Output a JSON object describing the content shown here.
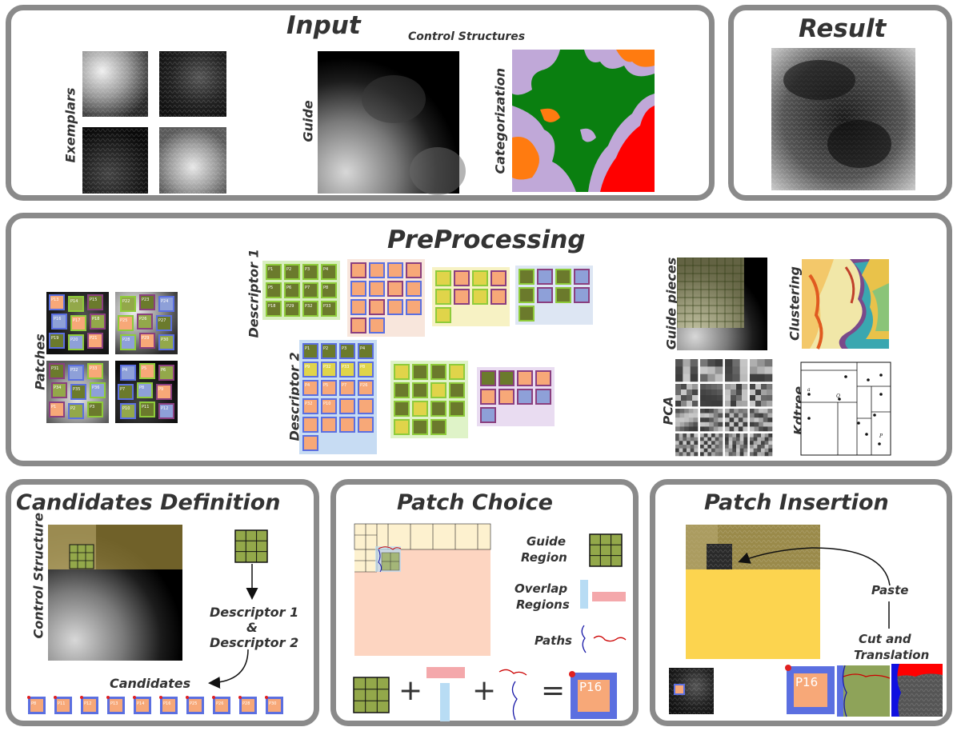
{
  "panels": {
    "input": {
      "title": "Input",
      "control_structures": "Control Structures",
      "exemplars": "Exemplars",
      "guide": "Guide",
      "categorization": "Categorization"
    },
    "result": {
      "title": "Result"
    },
    "preprocessing": {
      "title": "PreProcessing",
      "patches": "Patches",
      "descriptor1": "Descriptor 1",
      "descriptor2": "Descriptor 2",
      "guide_pieces": "Guide pieces",
      "clustering": "Clustering",
      "pca": "PCA",
      "kdtree": "Kdtree",
      "patch_ids_a": [
        "P13",
        "P14",
        "P15",
        "P16",
        "P17",
        "P18",
        "P19",
        "P20",
        "P21",
        "P22",
        "P23",
        "P24",
        "P25",
        "P26",
        "P27",
        "P28",
        "P29",
        "P30",
        "P31",
        "P32",
        "P33",
        "P34",
        "P35",
        "P36"
      ],
      "patch_ids_b": [
        "P1",
        "P2",
        "P3",
        "P4",
        "P5",
        "P6",
        "P7",
        "P8",
        "P9",
        "P10",
        "P11",
        "P12",
        "P37",
        "P38",
        "P39",
        "P40",
        "P41",
        "P42",
        "P43",
        "P44",
        "P45",
        "P46",
        "P47",
        "P48"
      ],
      "desc1_ids": [
        "P1",
        "P2",
        "P3",
        "P4",
        "P5",
        "P6",
        "P7",
        "P8",
        "P18",
        "P29",
        "P32",
        "P33"
      ],
      "desc2_ids": [
        "P1",
        "P2",
        "P3",
        "P4",
        "P9",
        "P32",
        "P33",
        "P8",
        "P4",
        "P5",
        "P7",
        "P26",
        "P32",
        "P10"
      ],
      "kdtree_points": [
        "a",
        "Q",
        "P"
      ]
    },
    "candidates": {
      "title": "Candidates Definition",
      "control_structure": "Control Structure",
      "descriptor_line1": "Descriptor 1",
      "descriptor_amp": "&",
      "descriptor_line2": "Descriptor 2",
      "candidates": "Candidates",
      "candidate_ids": [
        "P8",
        "P11",
        "P12",
        "P13",
        "P14",
        "P16",
        "P25",
        "P26",
        "P28",
        "P30"
      ]
    },
    "patch_choice": {
      "title": "Patch Choice",
      "guide_region_1": "Guide",
      "guide_region_2": "Region",
      "overlap_1": "Overlap",
      "overlap_2": "Regions",
      "paths": "Paths",
      "plus": "+",
      "equals": "=",
      "result_patch": "P16"
    },
    "patch_insertion": {
      "title": "Patch Insertion",
      "paste": "Paste",
      "cut_1": "Cut and",
      "cut_2": "Translation",
      "patch": "P16"
    }
  },
  "colors": {
    "border": "#8a8a8a",
    "green_cell": "#93a84a",
    "olive_cell": "#6b7a2c",
    "orange_cell": "#f7a878",
    "blue_frame": "#5b6fe0",
    "purple_frame": "#8a3f7f",
    "lime_frame": "#8ecb3a",
    "cat_green": "#0a7f10",
    "cat_orange": "#ff7b10",
    "cat_lavender": "#c0a8d8",
    "cat_red": "#ff0000",
    "insert_yellow": "#fcd44f",
    "pink_overlap": "#f4a8ab",
    "light_blue_overlap": "#b8dcf4"
  }
}
